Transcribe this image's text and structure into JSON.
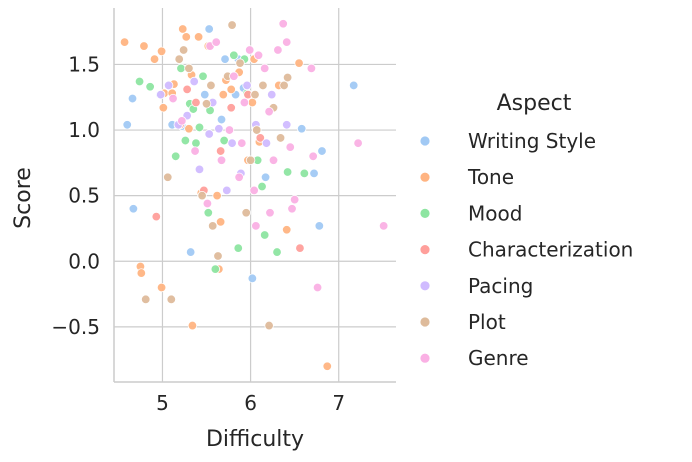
{
  "chart_data": {
    "type": "scatter",
    "xlabel": "Difficulty",
    "ylabel": "Score",
    "xlim": [
      4.45,
      7.65
    ],
    "ylim": [
      -0.92,
      1.93
    ],
    "xticks": [
      5,
      6,
      7
    ],
    "yticks": [
      -0.5,
      0.0,
      0.5,
      1.0,
      1.5
    ],
    "xtick_labels": [
      "5",
      "6",
      "7"
    ],
    "ytick_labels": [
      "−0.5",
      "0.0",
      "0.5",
      "1.0",
      "1.5"
    ],
    "grid": true,
    "legend": {
      "title": "Aspect",
      "placement": "right"
    },
    "series": [
      {
        "name": "Writing Style",
        "color": "#a1c9f4",
        "points": [
          [
            4.6,
            1.04
          ],
          [
            4.66,
            1.24
          ],
          [
            4.67,
            0.4
          ],
          [
            4.97,
            1.27
          ],
          [
            5.11,
            1.04
          ],
          [
            5.22,
            1.03
          ],
          [
            5.32,
            0.07
          ],
          [
            5.48,
            1.27
          ],
          [
            5.53,
            1.77
          ],
          [
            5.71,
            1.54
          ],
          [
            5.83,
            1.27
          ],
          [
            5.92,
            1.32
          ],
          [
            6.02,
            -0.13
          ],
          [
            6.17,
            0.64
          ],
          [
            6.58,
            1.01
          ],
          [
            6.72,
            0.67
          ],
          [
            6.78,
            0.27
          ],
          [
            6.81,
            0.84
          ],
          [
            7.17,
            1.34
          ],
          [
            5.67,
            1.08
          ],
          [
            5.86,
            1.54
          ]
        ]
      },
      {
        "name": "Tone",
        "color": "#ffb482",
        "points": [
          [
            4.57,
            1.67
          ],
          [
            4.75,
            -0.04
          ],
          [
            4.76,
            -0.09
          ],
          [
            4.79,
            1.64
          ],
          [
            4.91,
            1.54
          ],
          [
            4.99,
            1.6
          ],
          [
            4.99,
            -0.2
          ],
          [
            5.01,
            1.17
          ],
          [
            5.02,
            1.28
          ],
          [
            5.11,
            1.28
          ],
          [
            5.13,
            1.35
          ],
          [
            5.23,
            1.77
          ],
          [
            5.27,
            1.71
          ],
          [
            5.3,
            1.01
          ],
          [
            5.34,
            -0.49
          ],
          [
            5.41,
            1.71
          ],
          [
            5.44,
            0.52
          ],
          [
            5.52,
            1.64
          ],
          [
            5.62,
            0.5
          ],
          [
            5.64,
            -0.06
          ],
          [
            5.66,
            0.3
          ],
          [
            5.69,
            1.27
          ],
          [
            5.72,
            1.38
          ],
          [
            5.78,
            1.31
          ],
          [
            5.87,
            1.44
          ],
          [
            5.97,
            0.77
          ],
          [
            6.02,
            1.21
          ],
          [
            6.04,
            1.54
          ],
          [
            6.1,
            0.91
          ],
          [
            6.32,
            1.34
          ],
          [
            6.41,
            0.24
          ],
          [
            6.55,
            1.51
          ],
          [
            6.87,
            -0.8
          ],
          [
            5.33,
            1.42
          ]
        ]
      },
      {
        "name": "Mood",
        "color": "#8de5a1",
        "points": [
          [
            4.74,
            1.37
          ],
          [
            4.86,
            1.33
          ],
          [
            5.15,
            0.8
          ],
          [
            5.21,
            1.47
          ],
          [
            5.26,
            0.92
          ],
          [
            5.31,
            1.2
          ],
          [
            5.35,
            1.16
          ],
          [
            5.38,
            0.9
          ],
          [
            5.46,
            1.41
          ],
          [
            5.52,
            0.37
          ],
          [
            5.54,
            1.15
          ],
          [
            5.6,
            -0.06
          ],
          [
            5.7,
            0.92
          ],
          [
            5.81,
            1.57
          ],
          [
            5.86,
            0.1
          ],
          [
            5.96,
            1.28
          ],
          [
            6.08,
            0.77
          ],
          [
            6.13,
            0.57
          ],
          [
            6.16,
            0.2
          ],
          [
            6.3,
            0.07
          ],
          [
            6.42,
            0.68
          ],
          [
            6.61,
            0.67
          ],
          [
            5.93,
            1.54
          ],
          [
            5.42,
            1.02
          ]
        ]
      },
      {
        "name": "Characterization",
        "color": "#ff9f9b",
        "points": [
          [
            4.93,
            0.34
          ],
          [
            5.2,
            1.04
          ],
          [
            5.28,
            1.31
          ],
          [
            5.38,
            1.21
          ],
          [
            5.66,
            0.84
          ],
          [
            5.97,
            1.27
          ],
          [
            6.11,
            0.94
          ],
          [
            6.56,
            0.1
          ],
          [
            5.47,
            0.54
          ],
          [
            5.78,
            1.17
          ]
        ]
      },
      {
        "name": "Pacing",
        "color": "#d0bbff",
        "points": [
          [
            4.98,
            1.27
          ],
          [
            5.07,
            1.34
          ],
          [
            5.18,
            1.04
          ],
          [
            5.28,
            1.11
          ],
          [
            5.42,
            0.7
          ],
          [
            5.53,
            0.97
          ],
          [
            5.57,
            1.21
          ],
          [
            5.64,
            1.01
          ],
          [
            5.73,
            0.54
          ],
          [
            5.79,
            0.9
          ],
          [
            5.89,
            0.67
          ],
          [
            5.96,
            1.34
          ],
          [
            6.06,
            1.04
          ],
          [
            6.24,
            1.27
          ],
          [
            6.41,
            1.04
          ],
          [
            5.36,
            1.37
          ],
          [
            6.18,
            0.9
          ]
        ]
      },
      {
        "name": "Plot",
        "color": "#debb9b",
        "points": [
          [
            4.81,
            -0.29
          ],
          [
            5.06,
            0.64
          ],
          [
            5.1,
            -0.29
          ],
          [
            5.19,
            1.54
          ],
          [
            5.24,
            1.61
          ],
          [
            5.3,
            1.47
          ],
          [
            5.45,
            0.5
          ],
          [
            5.5,
            1.2
          ],
          [
            5.57,
            0.27
          ],
          [
            5.63,
            0.04
          ],
          [
            5.74,
            1.41
          ],
          [
            5.79,
            1.8
          ],
          [
            5.88,
            1.51
          ],
          [
            5.95,
            0.37
          ],
          [
            6.0,
            0.77
          ],
          [
            6.07,
            1.0
          ],
          [
            6.14,
            1.34
          ],
          [
            6.21,
            -0.49
          ],
          [
            6.26,
            1.17
          ],
          [
            6.34,
            0.94
          ],
          [
            6.38,
            1.34
          ],
          [
            6.42,
            1.4
          ],
          [
            5.55,
            1.34
          ],
          [
            6.05,
            1.27
          ]
        ]
      },
      {
        "name": "Genre",
        "color": "#fab0e4",
        "points": [
          [
            5.12,
            1.24
          ],
          [
            5.22,
            1.07
          ],
          [
            5.37,
            0.84
          ],
          [
            5.51,
            0.44
          ],
          [
            5.54,
            1.64
          ],
          [
            5.61,
            1.67
          ],
          [
            5.67,
            0.77
          ],
          [
            5.76,
            1.0
          ],
          [
            5.81,
            1.41
          ],
          [
            5.87,
            0.64
          ],
          [
            5.93,
            1.21
          ],
          [
            5.99,
            1.61
          ],
          [
            6.04,
            0.54
          ],
          [
            6.09,
            1.57
          ],
          [
            6.16,
            1.47
          ],
          [
            6.21,
            1.14
          ],
          [
            6.26,
            0.77
          ],
          [
            6.31,
            1.61
          ],
          [
            6.37,
            1.81
          ],
          [
            6.41,
            1.67
          ],
          [
            6.45,
            0.87
          ],
          [
            6.47,
            0.4
          ],
          [
            6.5,
            0.47
          ],
          [
            6.69,
            1.47
          ],
          [
            6.71,
            0.8
          ],
          [
            6.76,
            -0.2
          ],
          [
            7.22,
            0.9
          ],
          [
            7.51,
            0.27
          ],
          [
            6.22,
            0.37
          ],
          [
            6.06,
            0.27
          ],
          [
            5.9,
            0.9
          ]
        ]
      }
    ]
  }
}
